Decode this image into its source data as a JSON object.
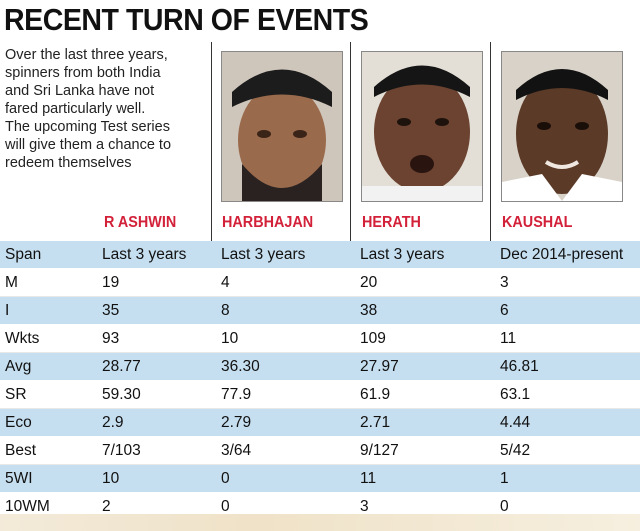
{
  "title": "RECENT TURN OF EVENTS",
  "intro_lines": [
    "Over the last three years,",
    "spinners from both India",
    "and Sri Lanka have not",
    "fared particularly well.",
    "The upcoming Test series",
    "will give them a chance to",
    "redeem themselves"
  ],
  "players": [
    "R ASHWIN",
    "HARBHAJAN",
    "HERATH",
    "KAUSHAL"
  ],
  "colors": {
    "accent": "#d3213a",
    "row_band": "#c6dff0"
  },
  "rows": [
    {
      "label": "Span",
      "values": [
        "Last 3 years",
        "Last 3 years",
        "Last 3 years",
        "Dec 2014-present"
      ]
    },
    {
      "label": "M",
      "values": [
        "19",
        "4",
        "20",
        "3"
      ]
    },
    {
      "label": "I",
      "values": [
        "35",
        "8",
        "38",
        "6"
      ]
    },
    {
      "label": "Wkts",
      "values": [
        "93",
        "10",
        "109",
        "11"
      ]
    },
    {
      "label": "Avg",
      "values": [
        "28.77",
        "36.30",
        "27.97",
        "46.81"
      ]
    },
    {
      "label": "SR",
      "values": [
        "59.30",
        "77.9",
        "61.9",
        "63.1"
      ]
    },
    {
      "label": "Eco",
      "values": [
        "2.9",
        "2.79",
        "2.71",
        "4.44"
      ]
    },
    {
      "label": "Best",
      "values": [
        "7/103",
        "3/64",
        "9/127",
        "5/42"
      ]
    },
    {
      "label": "5WI",
      "values": [
        "10",
        "0",
        "11",
        "1"
      ]
    },
    {
      "label": "10WM",
      "values": [
        "2",
        "0",
        "3",
        "0"
      ]
    }
  ]
}
